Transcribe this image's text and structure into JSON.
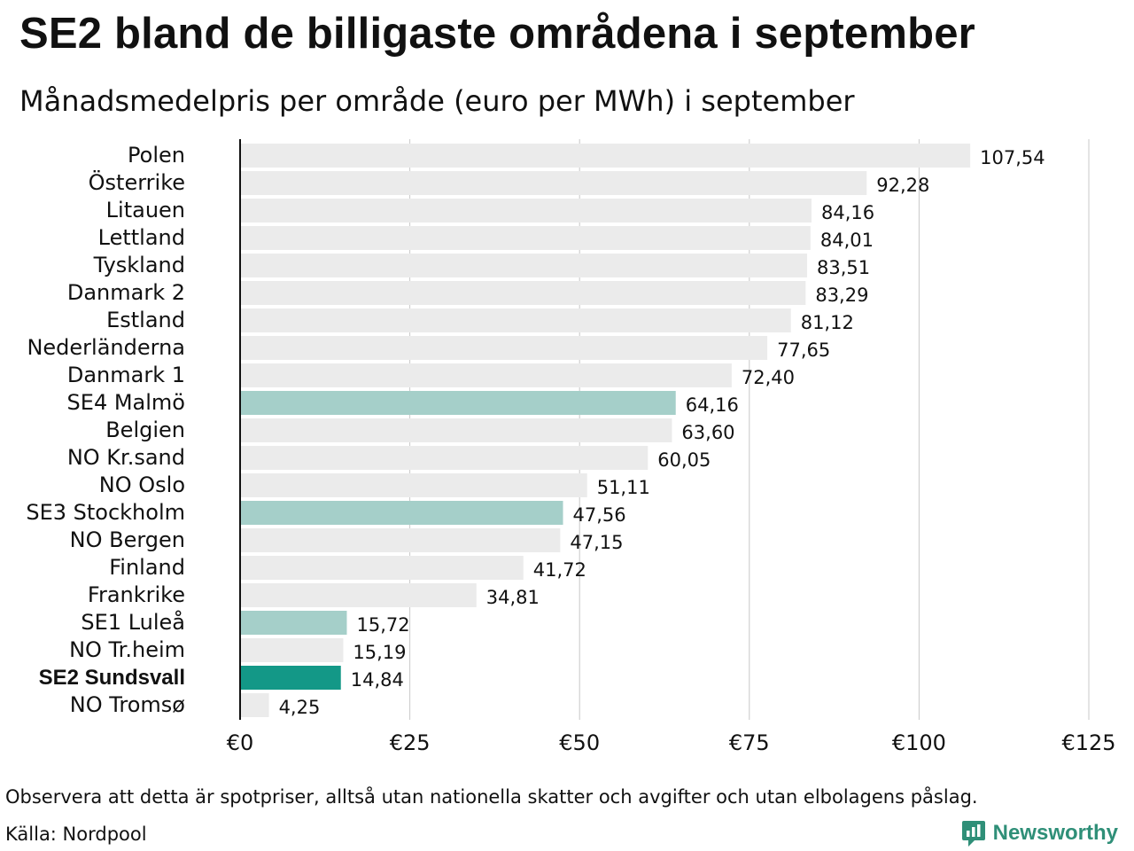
{
  "title": "SE2 bland de billigaste områdena i september",
  "subtitle": "Månadsmedelpris per område (euro per MWh) i september",
  "footnote": "Observera att detta är spotpriser, alltså utan nationella skatter och avgifter och utan elbolagens påslag.",
  "source": "Källa: Nordpool",
  "logo_text": "Newsworthy",
  "colors": {
    "bar_default": "#ebebeb",
    "bar_swedish": "#a5cfc9",
    "bar_highlight": "#139887",
    "grid": "#c8c8c8",
    "axis": "#111111",
    "logo": "#2f8f78"
  },
  "chart_data": {
    "type": "bar",
    "orientation": "horizontal",
    "title": "SE2 bland de billigaste områdena i september",
    "xlabel": "",
    "ylabel": "",
    "xlim": [
      0,
      125
    ],
    "ticks": [
      0,
      25,
      50,
      75,
      100,
      125
    ],
    "tick_labels": [
      "€0",
      "€25",
      "€50",
      "€75",
      "€100",
      "€125"
    ],
    "grid": true,
    "categories": [
      "Polen",
      "Österrike",
      "Litauen",
      "Lettland",
      "Tyskland",
      "Danmark  2",
      "Estland",
      "Nederländerna",
      "Danmark  1",
      "SE4  Malmö",
      "Belgien",
      "NO Kr.sand",
      "NO Oslo",
      "SE3  Stockholm",
      "NO Bergen",
      "Finland",
      "Frankrike",
      "SE1  Luleå",
      "NO Tr.heim",
      "SE2 Sundsvall",
      "NO Tromsø"
    ],
    "values": [
      107.54,
      92.28,
      84.16,
      84.01,
      83.51,
      83.29,
      81.12,
      77.65,
      72.4,
      64.16,
      63.6,
      60.05,
      51.11,
      47.56,
      47.15,
      41.72,
      34.81,
      15.72,
      15.19,
      14.84,
      4.25
    ],
    "value_labels": [
      "107,54",
      "92,28",
      "84,16",
      "84,01",
      "83,51",
      "83,29",
      "81,12",
      "77,65",
      "72,40",
      "64,16",
      "63,60",
      "60,05",
      "51,11",
      "47,56",
      "47,15",
      "41,72",
      "34,81",
      "15,72",
      "15,19",
      "14,84",
      "4,25"
    ],
    "groups": [
      "other",
      "other",
      "other",
      "other",
      "other",
      "other",
      "other",
      "other",
      "other",
      "swedish",
      "other",
      "other",
      "other",
      "swedish",
      "other",
      "other",
      "other",
      "swedish",
      "other",
      "highlight",
      "other"
    ]
  }
}
